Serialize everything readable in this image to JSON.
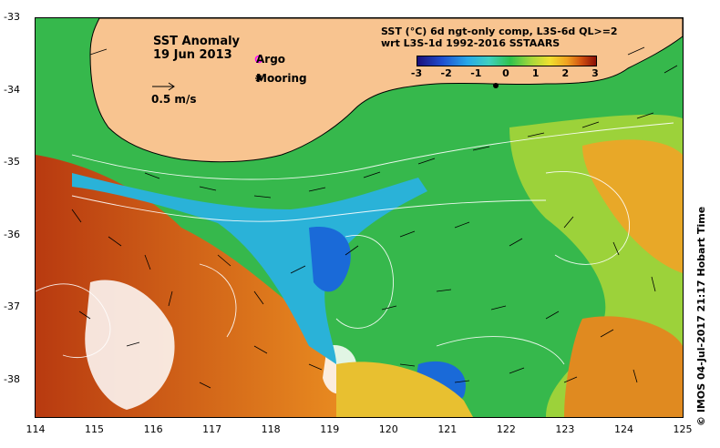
{
  "map": {
    "title_line1": "SST Anomaly",
    "title_line2": "19 Jun 2013",
    "legend_argo": "Argo",
    "legend_mooring": "Mooring",
    "scale_label": "0.5 m/s",
    "lon_ticks": [
      "114",
      "115",
      "116",
      "117",
      "118",
      "119",
      "120",
      "121",
      "122",
      "123",
      "124",
      "125"
    ],
    "lat_ticks": [
      "-33",
      "-34",
      "-35",
      "-36",
      "-37",
      "-38"
    ],
    "colorbar": {
      "title_line1": "SST (°C) 6d ngt-only comp, L3S-6d QL>=2",
      "title_line2": "wrt L3S-1d 1992-2016 SSTAARS",
      "ticks": [
        "-3",
        "-2",
        "-1",
        "0",
        "1",
        "2",
        "3"
      ],
      "range": [
        -3,
        3
      ]
    },
    "credit": "© IMOS 04-Jul-2017 21:17 Hobart Time",
    "colors": {
      "land": "#f8c490",
      "ocean_mid": "#2fb24a",
      "cool": "#28a8e8",
      "warm": "#d05010"
    }
  }
}
